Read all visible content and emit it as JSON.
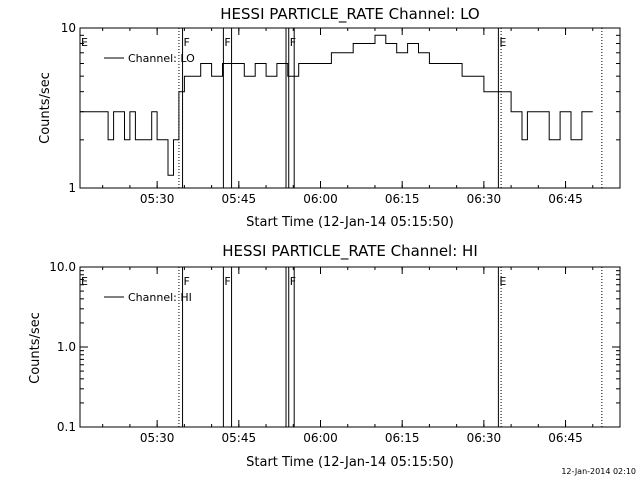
{
  "footer": {
    "timestamp": "12-Jan-2014 02:10"
  },
  "chart_data": [
    {
      "type": "line",
      "title": "HESSI PARTICLE_RATE Channel: LO",
      "xlabel": "Start Time (12-Jan-14 05:15:50)",
      "ylabel": "Counts/sec",
      "yscale": "log",
      "ylim": [
        1,
        10
      ],
      "y_ticks": [
        1,
        10
      ],
      "y_tick_labels": [
        "1",
        "10"
      ],
      "xlim": [
        "05:15:50",
        "06:55:00"
      ],
      "x_ticks": [
        "05:30",
        "05:45",
        "06:00",
        "06:15",
        "06:30",
        "06:45"
      ],
      "legend": {
        "position": "top-left",
        "entries": [
          "Channel: LO"
        ]
      },
      "series": [
        {
          "name": "Channel: LO",
          "x": [
            "05:15:50",
            "05:17",
            "05:20",
            "05:21",
            "05:22",
            "05:23",
            "05:24",
            "05:25",
            "05:26",
            "05:27",
            "05:28",
            "05:29",
            "05:30",
            "05:31",
            "05:32",
            "05:33",
            "05:34",
            "05:35",
            "05:36",
            "05:38",
            "05:40",
            "05:42",
            "05:44",
            "05:46",
            "05:48",
            "05:50",
            "05:52",
            "05:54",
            "05:56",
            "05:58",
            "06:00",
            "06:02",
            "06:04",
            "06:06",
            "06:08",
            "06:10",
            "06:12",
            "06:14",
            "06:16",
            "06:18",
            "06:20",
            "06:22",
            "06:24",
            "06:26",
            "06:28",
            "06:30",
            "06:32",
            "06:33",
            "06:34",
            "06:35",
            "06:36",
            "06:37",
            "06:38",
            "06:40",
            "06:42",
            "06:44",
            "06:46",
            "06:48",
            "06:50"
          ],
          "values": [
            3,
            3,
            3,
            2,
            3,
            3,
            2,
            3,
            2,
            2,
            2,
            3,
            2,
            2,
            1.2,
            2,
            4,
            5,
            5,
            6,
            5,
            6,
            6,
            5,
            6,
            5,
            6,
            5,
            6,
            6,
            6,
            7,
            7,
            8,
            8,
            9,
            8,
            7,
            8,
            7,
            6,
            6,
            6,
            5,
            5,
            4,
            4,
            4,
            4,
            3,
            3,
            2,
            3,
            3,
            2,
            3,
            2,
            3,
            3
          ]
        }
      ],
      "vertical_markers": [
        {
          "label": "E",
          "time": "05:15:50",
          "style": "none"
        },
        {
          "label": "F",
          "time": "05:34:40",
          "style": "solid"
        },
        {
          "label": "F",
          "time": "05:42:10",
          "style": "solid"
        },
        {
          "label": "F",
          "time": "05:54:10",
          "style": "solid"
        },
        {
          "label": "E",
          "time": "06:32:40",
          "style": "solid"
        }
      ],
      "vertical_lines": [
        {
          "time": "05:34:00",
          "style": "dotted"
        },
        {
          "time": "05:43:40",
          "style": "solid"
        },
        {
          "time": "05:53:40",
          "style": "solid"
        },
        {
          "time": "05:55:10",
          "style": "solid"
        },
        {
          "time": "06:33:10",
          "style": "dotted"
        },
        {
          "time": "06:51:40",
          "style": "dotted"
        }
      ]
    },
    {
      "type": "line",
      "title": "HESSI PARTICLE_RATE Channel: HI",
      "xlabel": "Start Time (12-Jan-14 05:15:50)",
      "ylabel": "Counts/sec",
      "yscale": "log",
      "ylim": [
        0.1,
        10
      ],
      "y_ticks": [
        0.1,
        1,
        10
      ],
      "y_tick_labels": [
        "0.1",
        "1.0",
        "10.0"
      ],
      "xlim": [
        "05:15:50",
        "06:55:00"
      ],
      "x_ticks": [
        "05:30",
        "05:45",
        "06:00",
        "06:15",
        "06:30",
        "06:45"
      ],
      "legend": {
        "position": "top-left",
        "entries": [
          "Channel: HI"
        ]
      },
      "series": [
        {
          "name": "Channel: HI",
          "x": [],
          "values": []
        }
      ],
      "vertical_markers": [
        {
          "label": "E",
          "time": "05:15:50",
          "style": "none"
        },
        {
          "label": "F",
          "time": "05:34:40",
          "style": "solid"
        },
        {
          "label": "F",
          "time": "05:42:10",
          "style": "solid"
        },
        {
          "label": "F",
          "time": "05:54:10",
          "style": "solid"
        },
        {
          "label": "E",
          "time": "06:32:40",
          "style": "solid"
        }
      ],
      "vertical_lines": [
        {
          "time": "05:34:00",
          "style": "dotted"
        },
        {
          "time": "05:43:40",
          "style": "solid"
        },
        {
          "time": "05:53:40",
          "style": "solid"
        },
        {
          "time": "05:55:10",
          "style": "solid"
        },
        {
          "time": "06:33:10",
          "style": "dotted"
        },
        {
          "time": "06:51:40",
          "style": "dotted"
        }
      ]
    }
  ]
}
